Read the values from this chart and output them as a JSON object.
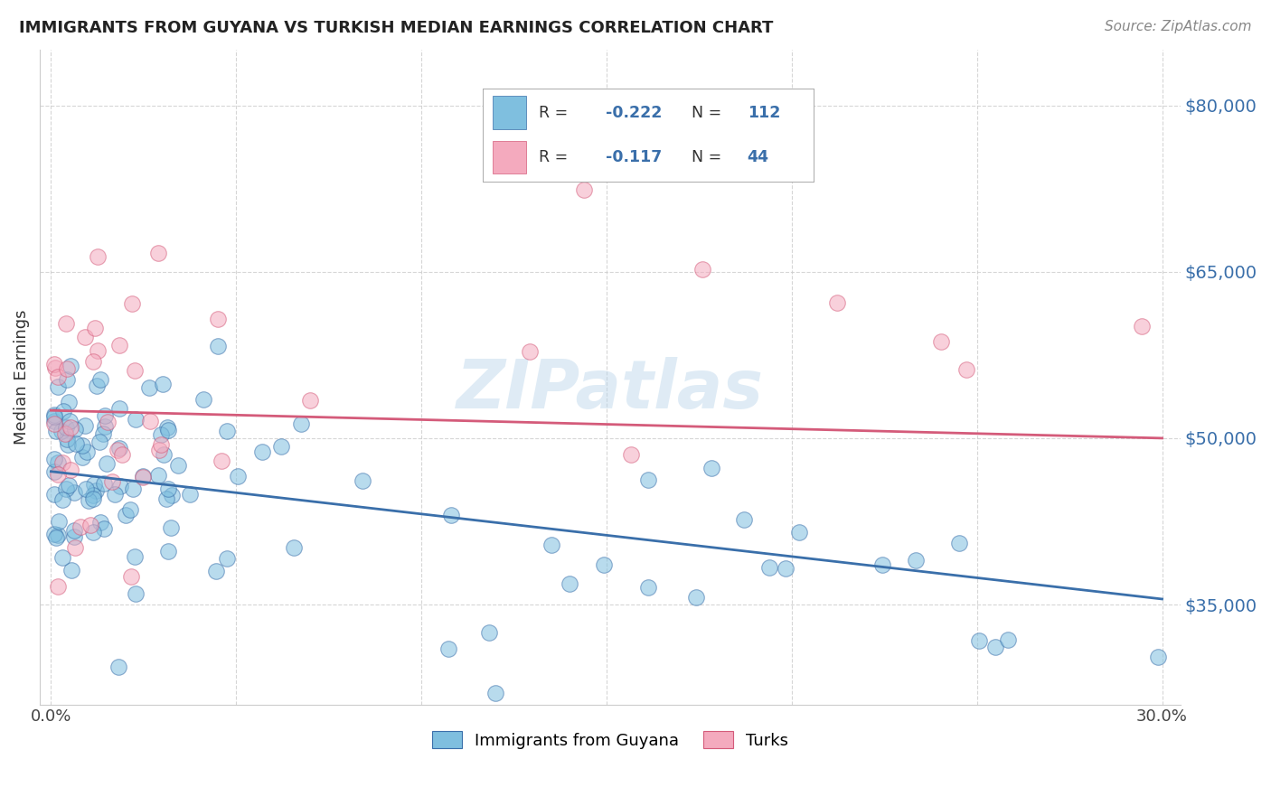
{
  "title": "IMMIGRANTS FROM GUYANA VS TURKISH MEDIAN EARNINGS CORRELATION CHART",
  "source": "Source: ZipAtlas.com",
  "ylabel": "Median Earnings",
  "ytick_labels": [
    "$35,000",
    "$50,000",
    "$65,000",
    "$80,000"
  ],
  "ytick_values": [
    35000,
    50000,
    65000,
    80000
  ],
  "ylim": [
    26000,
    85000
  ],
  "xlim": [
    -0.003,
    0.305
  ],
  "watermark": "ZIPatlas",
  "legend_label1": "Immigrants from Guyana",
  "legend_label2": "Turks",
  "color_blue": "#7fbfdf",
  "color_pink": "#f4aabe",
  "line_color_blue": "#3a6faa",
  "line_color_pink": "#d45b7a",
  "background_color": "#ffffff",
  "grid_color": "#cccccc",
  "title_color": "#222222",
  "source_color": "#888888",
  "ytick_color": "#3a6faa",
  "xtick_color": "#444444",
  "guyana_R": -0.222,
  "guyana_N": 112,
  "turk_R": -0.117,
  "turk_N": 44,
  "guyana_line_x0": 0.0,
  "guyana_line_y0": 47000,
  "guyana_line_x1": 0.3,
  "guyana_line_y1": 35500,
  "turk_line_x0": 0.0,
  "turk_line_y0": 52500,
  "turk_line_x1": 0.3,
  "turk_line_y1": 50000
}
